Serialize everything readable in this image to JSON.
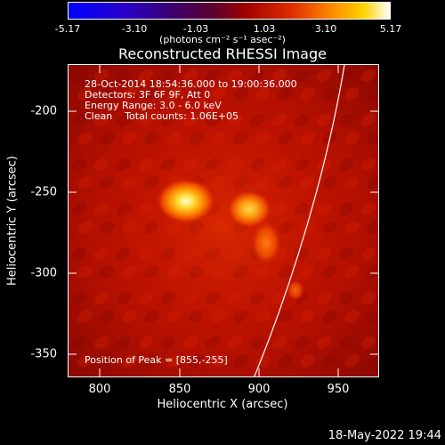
{
  "colorbar": {
    "ticks": [
      "-5.17",
      "-3.10",
      "-1.03",
      "1.03",
      "3.10",
      "5.17"
    ],
    "units": "(photons cm⁻² s⁻¹ asec⁻²)"
  },
  "title": "Reconstructed RHESSI Image",
  "info": {
    "time": "28-Oct-2014 18:54:36.000 to 19:00:36.000",
    "detectors": "Detectors: 3F 6F 9F, Att 0",
    "energy": "Energy Range: 3.0 - 6.0 keV",
    "clean": "Clean    Total counts: 1.06E+05",
    "peak": "Position of Peak = [855,-255]"
  },
  "axes": {
    "xlabel": "Heliocentric X (arcsec)",
    "ylabel": "Heliocentric Y (arcsec)",
    "xticks": [
      "800",
      "850",
      "900",
      "950"
    ],
    "yticks": [
      "-200",
      "-250",
      "-300",
      "-350"
    ]
  },
  "footer_date": "18-May-2022 19:44",
  "colors": {
    "background": "#000000",
    "axes": "#ffffff"
  }
}
